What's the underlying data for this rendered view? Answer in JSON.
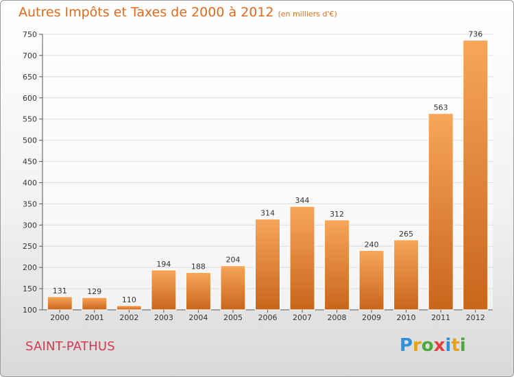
{
  "title": "Autres Impôts et Taxes de 2000 à 2012",
  "unit": "(en milliers d'€)",
  "city": "SAINT-PATHUS",
  "logo": {
    "letters": [
      "P",
      "r",
      "o",
      "x",
      "i",
      "t",
      "i"
    ],
    "colors": [
      "#2f8fd8",
      "#e8a21a",
      "#4aa83c",
      "#e23f3f",
      "#2f8fd8",
      "#e8a21a",
      "#4aa83c"
    ]
  },
  "colors": {
    "bar": "#f28b2a",
    "bar_light": "#f7a65a",
    "axis": "#555555",
    "grid": "#dcdcdc",
    "title": "#e46a1a",
    "city": "#d6384f"
  },
  "chart_data": {
    "type": "bar",
    "categories": [
      "2000",
      "2001",
      "2002",
      "2003",
      "2004",
      "2005",
      "2006",
      "2007",
      "2008",
      "2009",
      "2010",
      "2011",
      "2012"
    ],
    "values": [
      131,
      129,
      110,
      194,
      188,
      204,
      314,
      344,
      312,
      240,
      265,
      563,
      736
    ],
    "ylim": [
      100,
      750
    ],
    "yticks": [
      100,
      150,
      200,
      250,
      300,
      350,
      400,
      450,
      500,
      550,
      600,
      650,
      700,
      750
    ],
    "grid": true
  }
}
